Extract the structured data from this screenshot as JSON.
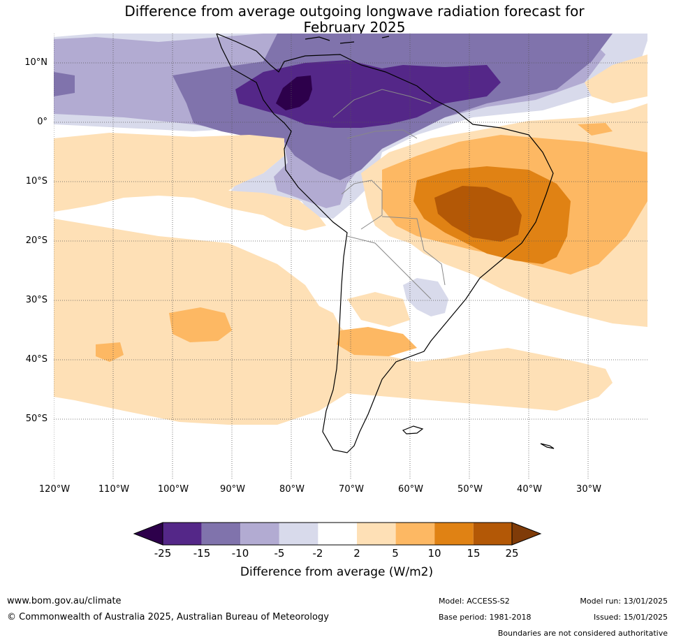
{
  "map": {
    "title_line1": "Difference from average outgoing longwave radiation forecast for",
    "title_line2": "February 2025",
    "lat_labels": [
      "10°N",
      "0°",
      "10°S",
      "20°S",
      "30°S",
      "40°S",
      "50°S"
    ],
    "lon_labels": [
      "120°W",
      "110°W",
      "100°W",
      "90°W",
      "80°W",
      "70°W",
      "60°W",
      "50°W",
      "40°W",
      "30°W"
    ],
    "extent": {
      "lon_min": -120,
      "lon_max": -20,
      "lat_min": -60,
      "lat_max": 15
    },
    "gridlines": true
  },
  "colorbar": {
    "label": "Difference from average (W/m2)",
    "ticks": [
      "-25",
      "-15",
      "-10",
      "-5",
      "-2",
      "2",
      "5",
      "10",
      "15",
      "25"
    ],
    "colors": [
      "#2d004b",
      "#542788",
      "#8073ac",
      "#b2abd2",
      "#d8daeb",
      "#ffffff",
      "#fee0b6",
      "#fdb863",
      "#e08214",
      "#b35806",
      "#7f3b08"
    ],
    "extends": "both"
  },
  "footer": {
    "website": "www.bom.gov.au/climate",
    "copyright": "© Commonwealth of Australia 2025, Australian Bureau of Meteorology",
    "model": "Model: ACCESS-S2",
    "base_period": "Base period: 1981-2018",
    "model_run": "Model run: 13/01/2025",
    "issued": "Issued: 15/01/2025",
    "disclaimer": "Boundaries are not considered authoritative"
  }
}
